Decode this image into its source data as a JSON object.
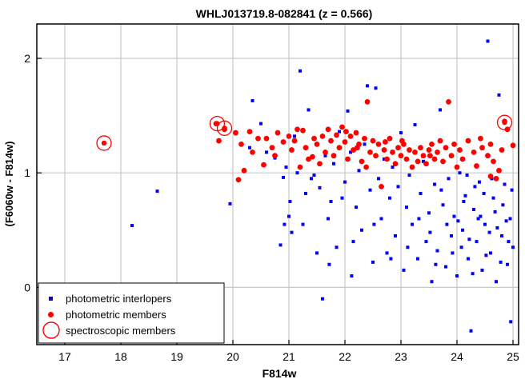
{
  "chart_data": {
    "type": "scatter",
    "title": "WHLJ013719.8-082841 (z = 0.566)",
    "xlabel": "F814w",
    "ylabel": "(F6060w - F814w)",
    "xlim": [
      16.5,
      25.1
    ],
    "ylim": [
      -0.5,
      2.3
    ],
    "x_ticks": [
      17,
      18,
      19,
      20,
      21,
      22,
      23,
      24,
      25
    ],
    "y_ticks": [
      0,
      1,
      2
    ],
    "x_tick_labels": [
      "17",
      "18",
      "19",
      "20",
      "21",
      "22",
      "23",
      "24",
      "25"
    ],
    "y_tick_labels": [
      "0",
      "1",
      "2"
    ],
    "grid": true,
    "legend_position": "bottom-left",
    "series": [
      {
        "name": "photometric interlopers",
        "marker": "square",
        "color": "#0000ff",
        "points": [
          [
            18.2,
            0.54
          ],
          [
            18.65,
            0.84
          ],
          [
            19.95,
            0.73
          ],
          [
            20.3,
            1.22
          ],
          [
            20.35,
            1.63
          ],
          [
            20.5,
            1.43
          ],
          [
            20.6,
            1.18
          ],
          [
            20.75,
            1.13
          ],
          [
            20.85,
            0.37
          ],
          [
            20.9,
            0.96
          ],
          [
            20.95,
            1.05
          ],
          [
            21.0,
            0.62
          ],
          [
            21.05,
            0.48
          ],
          [
            21.1,
            1.32
          ],
          [
            21.15,
            1.0
          ],
          [
            21.2,
            1.89
          ],
          [
            21.25,
            0.55
          ],
          [
            21.3,
            0.82
          ],
          [
            21.35,
            1.55
          ],
          [
            21.4,
            0.95
          ],
          [
            21.45,
            0.98
          ],
          [
            21.5,
            0.3
          ],
          [
            21.55,
            0.87
          ],
          [
            21.6,
            -0.1
          ],
          [
            21.65,
            1.15
          ],
          [
            21.7,
            0.6
          ],
          [
            21.75,
            0.75
          ],
          [
            21.8,
            1.08
          ],
          [
            21.85,
            0.35
          ],
          [
            21.9,
            1.36
          ],
          [
            21.95,
            0.78
          ],
          [
            22.0,
            0.92
          ],
          [
            22.05,
            1.54
          ],
          [
            22.1,
            1.18
          ],
          [
            22.15,
            0.4
          ],
          [
            22.2,
            0.7
          ],
          [
            22.25,
            1.02
          ],
          [
            22.3,
            0.5
          ],
          [
            22.35,
            1.25
          ],
          [
            22.4,
            1.76
          ],
          [
            22.45,
            0.85
          ],
          [
            22.5,
            0.22
          ],
          [
            22.55,
            1.74
          ],
          [
            22.6,
            0.95
          ],
          [
            22.65,
            0.6
          ],
          [
            22.7,
            1.12
          ],
          [
            22.75,
            0.3
          ],
          [
            22.8,
            0.78
          ],
          [
            22.85,
            1.05
          ],
          [
            22.9,
            0.45
          ],
          [
            22.95,
            0.88
          ],
          [
            23.0,
            1.35
          ],
          [
            23.05,
            0.15
          ],
          [
            23.1,
            0.7
          ],
          [
            23.15,
            0.98
          ],
          [
            23.2,
            0.55
          ],
          [
            23.25,
            1.42
          ],
          [
            23.3,
            0.25
          ],
          [
            23.35,
            0.82
          ],
          [
            23.4,
            1.1
          ],
          [
            23.45,
            0.4
          ],
          [
            23.5,
            0.65
          ],
          [
            23.55,
            0.05
          ],
          [
            23.6,
            0.9
          ],
          [
            23.65,
            0.32
          ],
          [
            23.7,
            1.55
          ],
          [
            23.75,
            0.72
          ],
          [
            23.8,
            0.18
          ],
          [
            23.85,
            0.95
          ],
          [
            23.9,
            0.45
          ],
          [
            23.95,
            0.62
          ],
          [
            24.0,
            0.1
          ],
          [
            24.05,
            1.0
          ],
          [
            24.1,
            0.5
          ],
          [
            24.15,
            0.8
          ],
          [
            24.2,
            0.25
          ],
          [
            24.25,
            -0.38
          ],
          [
            24.3,
            0.68
          ],
          [
            24.35,
            0.4
          ],
          [
            24.4,
            0.92
          ],
          [
            24.45,
            0.15
          ],
          [
            24.5,
            0.55
          ],
          [
            24.55,
            2.15
          ],
          [
            24.6,
            0.3
          ],
          [
            24.65,
            0.78
          ],
          [
            24.7,
            0.05
          ],
          [
            24.75,
            1.68
          ],
          [
            24.8,
            0.45
          ],
          [
            24.85,
            0.9
          ],
          [
            24.9,
            0.2
          ],
          [
            24.95,
            0.6
          ],
          [
            25.0,
            0.35
          ],
          [
            24.02,
            0.58
          ],
          [
            24.12,
            0.75
          ],
          [
            24.22,
            0.42
          ],
          [
            24.32,
            0.88
          ],
          [
            24.42,
            0.62
          ],
          [
            24.52,
            0.28
          ],
          [
            24.62,
            0.95
          ],
          [
            24.72,
            0.52
          ],
          [
            24.82,
            0.72
          ],
          [
            24.92,
            0.4
          ],
          [
            24.08,
            0.35
          ],
          [
            24.18,
            0.98
          ],
          [
            24.28,
            0.12
          ],
          [
            24.38,
            0.6
          ],
          [
            24.48,
            0.82
          ],
          [
            24.58,
            0.48
          ],
          [
            24.68,
            0.66
          ],
          [
            24.78,
            0.22
          ],
          [
            24.88,
            0.58
          ],
          [
            24.98,
            0.85
          ],
          [
            23.52,
            0.48
          ],
          [
            23.62,
            0.2
          ],
          [
            23.72,
            0.85
          ],
          [
            23.82,
            0.55
          ],
          [
            23.92,
            0.3
          ],
          [
            22.52,
            0.55
          ],
          [
            22.82,
            0.25
          ],
          [
            23.12,
            0.35
          ],
          [
            23.32,
            0.6
          ],
          [
            21.72,
            0.2
          ],
          [
            22.12,
            0.1
          ],
          [
            21.02,
            0.75
          ],
          [
            20.92,
            0.55
          ],
          [
            24.96,
            -0.3
          ]
        ]
      },
      {
        "name": "photometric members",
        "marker": "circle",
        "color": "#ff0000",
        "points": [
          [
            19.7,
            1.43
          ],
          [
            19.75,
            1.28
          ],
          [
            19.85,
            1.38
          ],
          [
            20.05,
            1.35
          ],
          [
            20.1,
            0.94
          ],
          [
            20.15,
            1.25
          ],
          [
            20.2,
            1.02
          ],
          [
            20.3,
            1.36
          ],
          [
            20.35,
            1.18
          ],
          [
            20.45,
            1.3
          ],
          [
            20.55,
            1.07
          ],
          [
            20.6,
            1.3
          ],
          [
            20.7,
            1.22
          ],
          [
            20.8,
            1.35
          ],
          [
            20.9,
            1.27
          ],
          [
            21.0,
            1.32
          ],
          [
            21.05,
            1.2
          ],
          [
            21.1,
            1.28
          ],
          [
            21.2,
            1.05
          ],
          [
            21.25,
            1.37
          ],
          [
            21.3,
            1.22
          ],
          [
            21.35,
            1.12
          ],
          [
            21.45,
            1.3
          ],
          [
            21.5,
            1.25
          ],
          [
            21.55,
            1.08
          ],
          [
            21.6,
            1.32
          ],
          [
            21.65,
            1.18
          ],
          [
            21.7,
            1.38
          ],
          [
            21.75,
            1.28
          ],
          [
            21.8,
            1.15
          ],
          [
            21.85,
            1.33
          ],
          [
            21.9,
            1.22
          ],
          [
            21.95,
            1.4
          ],
          [
            22.0,
            1.27
          ],
          [
            22.05,
            1.12
          ],
          [
            22.1,
            1.32
          ],
          [
            22.15,
            1.2
          ],
          [
            22.2,
            1.35
          ],
          [
            22.25,
            1.25
          ],
          [
            22.3,
            1.1
          ],
          [
            22.35,
            1.3
          ],
          [
            22.4,
            1.62
          ],
          [
            22.45,
            1.18
          ],
          [
            22.5,
            1.28
          ],
          [
            22.55,
            1.15
          ],
          [
            22.6,
            1.25
          ],
          [
            22.65,
            0.88
          ],
          [
            22.7,
            1.2
          ],
          [
            22.75,
            1.12
          ],
          [
            22.8,
            1.3
          ],
          [
            22.85,
            1.18
          ],
          [
            22.9,
            1.08
          ],
          [
            22.95,
            1.22
          ],
          [
            23.0,
            1.15
          ],
          [
            23.05,
            1.25
          ],
          [
            23.1,
            1.12
          ],
          [
            23.15,
            1.2
          ],
          [
            23.2,
            1.05
          ],
          [
            23.25,
            1.18
          ],
          [
            23.3,
            1.1
          ],
          [
            23.35,
            1.22
          ],
          [
            23.4,
            1.15
          ],
          [
            23.45,
            1.08
          ],
          [
            23.5,
            1.2
          ],
          [
            23.55,
            1.25
          ],
          [
            23.6,
            1.12
          ],
          [
            23.65,
            1.18
          ],
          [
            23.7,
            1.28
          ],
          [
            23.75,
            1.1
          ],
          [
            23.8,
            1.22
          ],
          [
            23.85,
            1.62
          ],
          [
            23.9,
            1.15
          ],
          [
            23.95,
            1.25
          ],
          [
            24.0,
            1.05
          ],
          [
            24.05,
            1.2
          ],
          [
            24.1,
            1.12
          ],
          [
            24.2,
            1.28
          ],
          [
            24.3,
            1.18
          ],
          [
            24.35,
            1.06
          ],
          [
            24.45,
            1.22
          ],
          [
            24.55,
            1.15
          ],
          [
            24.6,
            1.25
          ],
          [
            24.65,
            1.1
          ],
          [
            24.7,
            0.95
          ],
          [
            24.75,
            1.02
          ],
          [
            24.8,
            1.2
          ],
          [
            24.85,
            1.45
          ],
          [
            24.9,
            1.38
          ],
          [
            25.0,
            1.24
          ],
          [
            22.02,
            1.36
          ],
          [
            22.22,
            1.22
          ],
          [
            21.42,
            1.14
          ],
          [
            22.72,
            1.27
          ],
          [
            23.52,
            1.15
          ],
          [
            24.42,
            1.3
          ],
          [
            24.6,
            0.97
          ],
          [
            20.75,
            1.15
          ],
          [
            21.15,
            1.38
          ],
          [
            22.38,
            1.05
          ],
          [
            23.02,
            1.28
          ]
        ]
      },
      {
        "name": "spectroscopic members",
        "marker": "ring",
        "color": "#ff0000",
        "points": [
          [
            17.7,
            1.26
          ],
          [
            19.72,
            1.43
          ],
          [
            19.85,
            1.39
          ],
          [
            24.85,
            1.44
          ]
        ]
      }
    ]
  }
}
